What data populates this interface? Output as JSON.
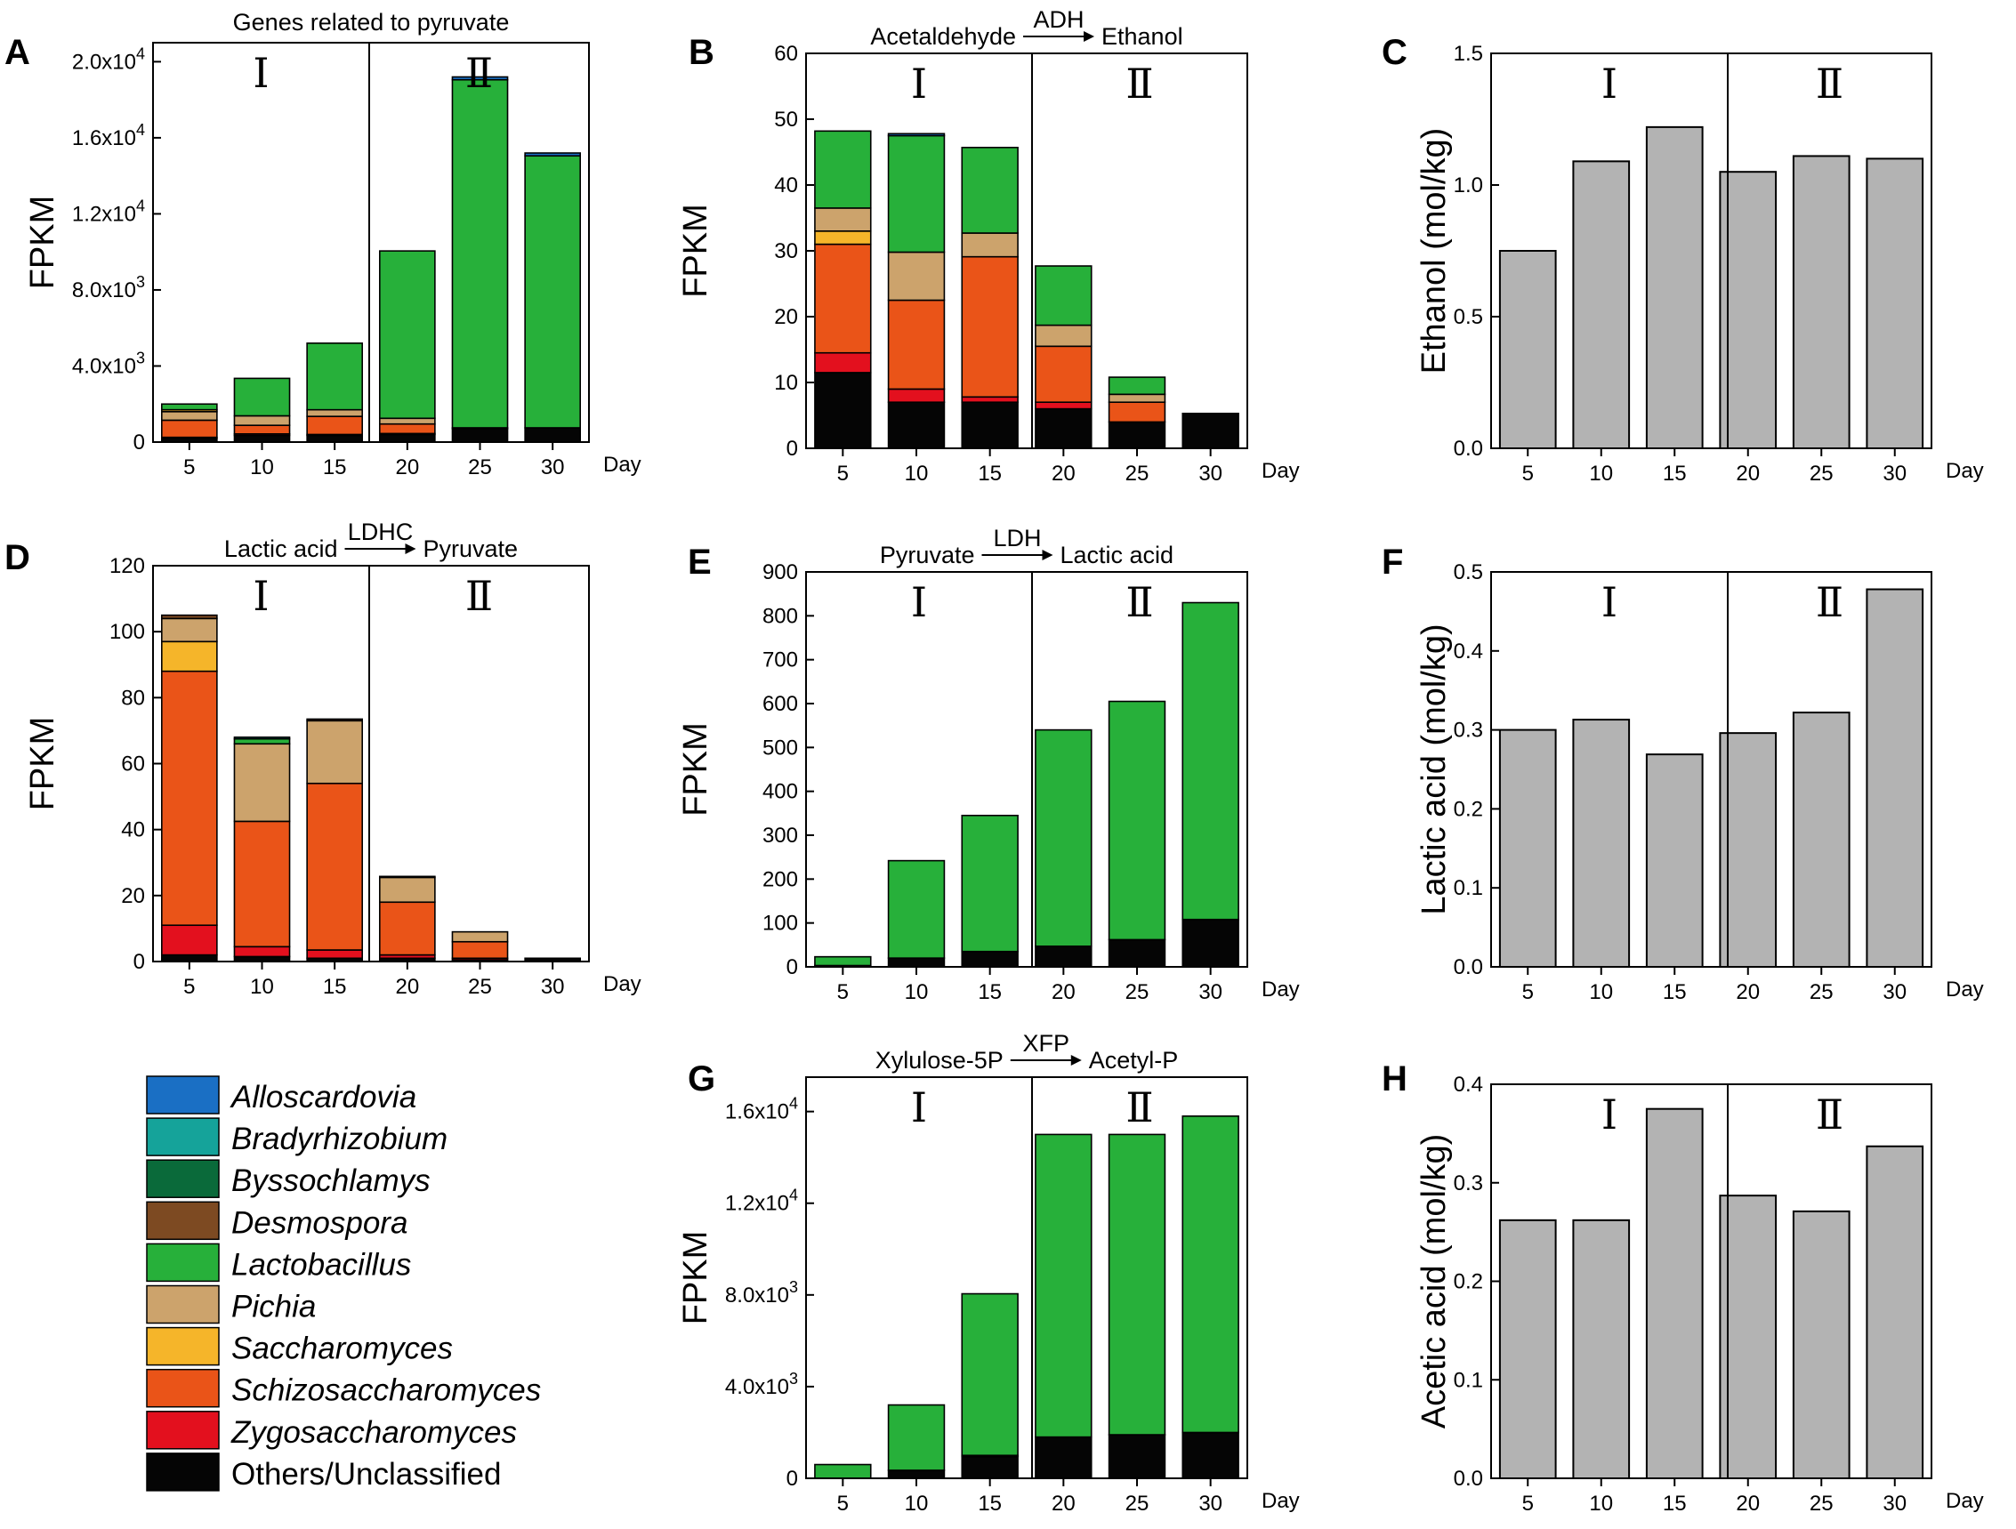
{
  "figure": {
    "x_label": "Day",
    "days": [
      "5",
      "10",
      "15",
      "20",
      "25",
      "30"
    ]
  },
  "colors": {
    "Alloscardovia": "#1a6fc4",
    "Bradyrhizobium": "#15a39a",
    "Byssochlamys": "#0a6a3a",
    "Desmospora": "#7d4a22",
    "Lactobacillus": "#27b03a",
    "Pichia": "#cca36c",
    "Saccharomyces": "#f5b52a",
    "Schizosaccharomyces": "#ea5418",
    "Zygosaccharomyces": "#e3101e",
    "Others/Unclassified": "#050505",
    "gray_bar": "#b3b3b3"
  },
  "legend": [
    {
      "name": "Alloscardovia",
      "italic": true
    },
    {
      "name": "Bradyrhizobium",
      "italic": true
    },
    {
      "name": "Byssochlamys",
      "italic": true
    },
    {
      "name": "Desmospora",
      "italic": true
    },
    {
      "name": "Lactobacillus",
      "italic": true
    },
    {
      "name": "Pichia",
      "italic": true
    },
    {
      "name": "Saccharomyces",
      "italic": true
    },
    {
      "name": "Schizosaccharomyces",
      "italic": true
    },
    {
      "name": "Zygosaccharomyces",
      "italic": true
    },
    {
      "name": "Others/Unclassified",
      "italic": false
    }
  ],
  "chart_data": [
    {
      "id": "A",
      "type": "bar",
      "stacked": true,
      "title": "Genes related to pyruvate",
      "ylabel": "FPKM",
      "ylim": [
        0,
        21000
      ],
      "yticks": [
        {
          "v": 0,
          "base": "0",
          "exp": ""
        },
        {
          "v": 4000,
          "base": "4.0x10",
          "exp": "3"
        },
        {
          "v": 8000,
          "base": "8.0x10",
          "exp": "3"
        },
        {
          "v": 12000,
          "base": "1.2x10",
          "exp": "4"
        },
        {
          "v": 16000,
          "base": "1.6x10",
          "exp": "4"
        },
        {
          "v": 20000,
          "base": "2.0x10",
          "exp": "4"
        }
      ],
      "phase_labels": [
        "Ⅰ",
        "Ⅱ"
      ],
      "categories": [
        "5",
        "10",
        "15",
        "20",
        "25",
        "30"
      ],
      "series": [
        {
          "name": "Others/Unclassified",
          "values": [
            200,
            350,
            350,
            400,
            700,
            750
          ]
        },
        {
          "name": "Zygosaccharomyces",
          "values": [
            50,
            80,
            50,
            50,
            0,
            0
          ]
        },
        {
          "name": "Schizosaccharomyces",
          "values": [
            900,
            450,
            950,
            500,
            0,
            0
          ]
        },
        {
          "name": "Pichia",
          "values": [
            450,
            500,
            350,
            300,
            50,
            0
          ]
        },
        {
          "name": "Saccharomyces",
          "values": [
            100,
            0,
            0,
            0,
            0,
            0
          ]
        },
        {
          "name": "Lactobacillus",
          "values": [
            300,
            1970,
            3500,
            8800,
            18300,
            14300
          ]
        },
        {
          "name": "Alloscardovia",
          "values": [
            0,
            0,
            0,
            0,
            150,
            150
          ]
        }
      ]
    },
    {
      "id": "B",
      "type": "bar",
      "stacked": true,
      "annotation": {
        "left": "Acetaldehyde",
        "enzyme": "ADH",
        "right": "Ethanol"
      },
      "ylabel": "FPKM",
      "ylim": [
        0,
        60
      ],
      "yticks": [
        {
          "v": 0,
          "base": "0",
          "exp": ""
        },
        {
          "v": 10,
          "base": "10",
          "exp": ""
        },
        {
          "v": 20,
          "base": "20",
          "exp": ""
        },
        {
          "v": 30,
          "base": "30",
          "exp": ""
        },
        {
          "v": 40,
          "base": "40",
          "exp": ""
        },
        {
          "v": 50,
          "base": "50",
          "exp": ""
        },
        {
          "v": 60,
          "base": "60",
          "exp": ""
        }
      ],
      "phase_labels": [
        "Ⅰ",
        "Ⅱ"
      ],
      "categories": [
        "5",
        "10",
        "15",
        "20",
        "25",
        "30"
      ],
      "series": [
        {
          "name": "Others/Unclassified",
          "values": [
            11.5,
            7,
            7,
            6,
            4,
            5.3
          ]
        },
        {
          "name": "Zygosaccharomyces",
          "values": [
            3,
            2,
            0.8,
            1,
            0,
            0
          ]
        },
        {
          "name": "Schizosaccharomyces",
          "values": [
            16.5,
            13.5,
            21.3,
            8.5,
            3,
            0
          ]
        },
        {
          "name": "Saccharomyces",
          "values": [
            2,
            0,
            0,
            0,
            0,
            0
          ]
        },
        {
          "name": "Pichia",
          "values": [
            3.5,
            7.3,
            3.6,
            3.2,
            1.2,
            0
          ]
        },
        {
          "name": "Lactobacillus",
          "values": [
            11.7,
            17.7,
            13,
            9,
            2.6,
            0
          ]
        },
        {
          "name": "Alloscardovia",
          "values": [
            0,
            0.3,
            0,
            0,
            0,
            0
          ]
        }
      ]
    },
    {
      "id": "C",
      "type": "bar",
      "ylabel": "Ethanol (mol/kg)",
      "ylim": [
        0,
        1.5
      ],
      "yticks": [
        {
          "v": 0,
          "base": "0.0",
          "exp": ""
        },
        {
          "v": 0.5,
          "base": "0.5",
          "exp": ""
        },
        {
          "v": 1.0,
          "base": "1.0",
          "exp": ""
        },
        {
          "v": 1.5,
          "base": "1.5",
          "exp": ""
        }
      ],
      "phase_labels": [
        "Ⅰ",
        "Ⅱ"
      ],
      "categories": [
        "5",
        "10",
        "15",
        "20",
        "25",
        "30"
      ],
      "values": [
        0.75,
        1.09,
        1.22,
        1.05,
        1.11,
        1.1
      ]
    },
    {
      "id": "D",
      "type": "bar",
      "stacked": true,
      "annotation": {
        "left": "Lactic acid",
        "enzyme": "LDHC",
        "right": "Pyruvate"
      },
      "ylabel": "FPKM",
      "ylim": [
        0,
        120
      ],
      "yticks": [
        {
          "v": 0,
          "base": "0",
          "exp": ""
        },
        {
          "v": 20,
          "base": "20",
          "exp": ""
        },
        {
          "v": 40,
          "base": "40",
          "exp": ""
        },
        {
          "v": 60,
          "base": "60",
          "exp": ""
        },
        {
          "v": 80,
          "base": "80",
          "exp": ""
        },
        {
          "v": 100,
          "base": "100",
          "exp": ""
        },
        {
          "v": 120,
          "base": "120",
          "exp": ""
        }
      ],
      "phase_labels": [
        "Ⅰ",
        "Ⅱ"
      ],
      "categories": [
        "5",
        "10",
        "15",
        "20",
        "25",
        "30"
      ],
      "series": [
        {
          "name": "Others/Unclassified",
          "values": [
            2,
            1.5,
            1,
            1,
            0.5,
            1
          ]
        },
        {
          "name": "Zygosaccharomyces",
          "values": [
            9,
            3,
            2.5,
            1,
            0.5,
            0
          ]
        },
        {
          "name": "Schizosaccharomyces",
          "values": [
            77,
            38,
            50.5,
            16,
            5,
            0
          ]
        },
        {
          "name": "Saccharomyces",
          "values": [
            9,
            0,
            0,
            0,
            0,
            0
          ]
        },
        {
          "name": "Pichia",
          "values": [
            7,
            23.5,
            19,
            7.5,
            3,
            0
          ]
        },
        {
          "name": "Lactobacillus",
          "values": [
            0,
            1.5,
            0,
            0,
            0,
            0
          ]
        },
        {
          "name": "Bradyrhizobium",
          "values": [
            0,
            0.5,
            0,
            0,
            0,
            0
          ]
        },
        {
          "name": "Desmospora",
          "values": [
            1,
            0,
            0.5,
            0.3,
            0,
            0
          ]
        }
      ]
    },
    {
      "id": "E",
      "type": "bar",
      "stacked": true,
      "annotation": {
        "left": "Pyruvate",
        "enzyme": "LDH",
        "right": "Lactic acid"
      },
      "ylabel": "FPKM",
      "ylim": [
        0,
        900
      ],
      "yticks": [
        {
          "v": 0,
          "base": "0",
          "exp": ""
        },
        {
          "v": 100,
          "base": "100",
          "exp": ""
        },
        {
          "v": 200,
          "base": "200",
          "exp": ""
        },
        {
          "v": 300,
          "base": "300",
          "exp": ""
        },
        {
          "v": 400,
          "base": "400",
          "exp": ""
        },
        {
          "v": 500,
          "base": "500",
          "exp": ""
        },
        {
          "v": 600,
          "base": "600",
          "exp": ""
        },
        {
          "v": 700,
          "base": "700",
          "exp": ""
        },
        {
          "v": 800,
          "base": "800",
          "exp": ""
        },
        {
          "v": 900,
          "base": "900",
          "exp": ""
        }
      ],
      "phase_labels": [
        "Ⅰ",
        "Ⅱ"
      ],
      "categories": [
        "5",
        "10",
        "15",
        "20",
        "25",
        "30"
      ],
      "series": [
        {
          "name": "Others/Unclassified",
          "values": [
            3,
            20,
            35,
            47,
            62,
            108
          ]
        },
        {
          "name": "Lactobacillus",
          "values": [
            20,
            222,
            310,
            493,
            543,
            722
          ]
        }
      ]
    },
    {
      "id": "F",
      "type": "bar",
      "ylabel": "Lactic acid (mol/kg)",
      "ylim": [
        0,
        0.5
      ],
      "yticks": [
        {
          "v": 0,
          "base": "0.0",
          "exp": ""
        },
        {
          "v": 0.1,
          "base": "0.1",
          "exp": ""
        },
        {
          "v": 0.2,
          "base": "0.2",
          "exp": ""
        },
        {
          "v": 0.3,
          "base": "0.3",
          "exp": ""
        },
        {
          "v": 0.4,
          "base": "0.4",
          "exp": ""
        },
        {
          "v": 0.5,
          "base": "0.5",
          "exp": ""
        }
      ],
      "phase_labels": [
        "Ⅰ",
        "Ⅱ"
      ],
      "categories": [
        "5",
        "10",
        "15",
        "20",
        "25",
        "30"
      ],
      "values": [
        0.3,
        0.313,
        0.269,
        0.296,
        0.322,
        0.478
      ]
    },
    {
      "id": "G",
      "type": "bar",
      "stacked": true,
      "annotation": {
        "left": "Xylulose-5P",
        "enzyme": "XFP",
        "right": "Acetyl-P"
      },
      "ylabel": "FPKM",
      "ylim": [
        0,
        17500
      ],
      "yticks": [
        {
          "v": 0,
          "base": "0",
          "exp": ""
        },
        {
          "v": 4000,
          "base": "4.0x10",
          "exp": "3"
        },
        {
          "v": 8000,
          "base": "8.0x10",
          "exp": "3"
        },
        {
          "v": 12000,
          "base": "1.2x10",
          "exp": "4"
        },
        {
          "v": 16000,
          "base": "1.6x10",
          "exp": "4"
        }
      ],
      "phase_labels": [
        "Ⅰ",
        "Ⅱ"
      ],
      "categories": [
        "5",
        "10",
        "15",
        "20",
        "25",
        "30"
      ],
      "series": [
        {
          "name": "Others/Unclassified",
          "values": [
            0,
            350,
            950,
            1800,
            1900,
            2000
          ]
        },
        {
          "name": "Pichia",
          "values": [
            0,
            0,
            50,
            0,
            0,
            0
          ]
        },
        {
          "name": "Lactobacillus",
          "values": [
            600,
            2850,
            7050,
            13200,
            13100,
            13800
          ]
        }
      ]
    },
    {
      "id": "H",
      "type": "bar",
      "ylabel": "Acetic acid (mol/kg)",
      "ylim": [
        0,
        0.4
      ],
      "yticks": [
        {
          "v": 0,
          "base": "0.0",
          "exp": ""
        },
        {
          "v": 0.1,
          "base": "0.1",
          "exp": ""
        },
        {
          "v": 0.2,
          "base": "0.2",
          "exp": ""
        },
        {
          "v": 0.3,
          "base": "0.3",
          "exp": ""
        },
        {
          "v": 0.4,
          "base": "0.4",
          "exp": ""
        }
      ],
      "phase_labels": [
        "Ⅰ",
        "Ⅱ"
      ],
      "categories": [
        "5",
        "10",
        "15",
        "20",
        "25",
        "30"
      ],
      "values": [
        0.262,
        0.262,
        0.375,
        0.287,
        0.271,
        0.337
      ]
    }
  ]
}
